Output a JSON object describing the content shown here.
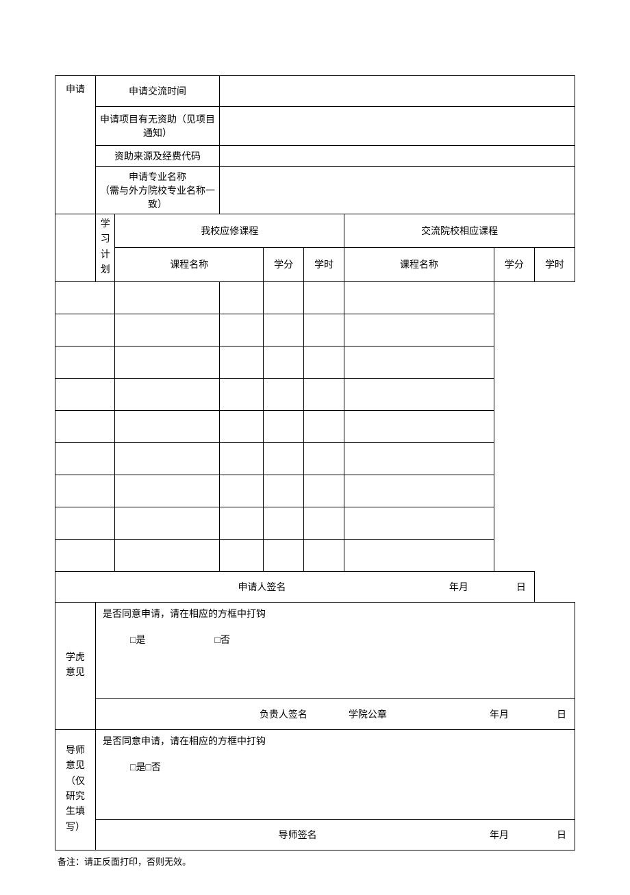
{
  "col1": {
    "apply": "申请",
    "study_plan": "学<br>习<br>计<br>划",
    "college_opinion": "学虎<br>意见",
    "supervisor_opinion": "导师<br>意见<br>（仅<br>研究<br>生填<br>写）"
  },
  "rows": {
    "exchange_time": "申请交流时间",
    "funding": "申请项目有无资助（见项目通知）",
    "funding_source": "资助来源及经费代码",
    "major": "申请专业名称<br>（需与外方院校专业名称一致）"
  },
  "plan_header": {
    "our_courses": "我校应修课程",
    "their_courses": "交流院校相应课程",
    "course_name": "课程名称",
    "credits": "学分",
    "hours": "学时"
  },
  "signatures": {
    "applicant": "申请人签名",
    "manager": "负贵人签名",
    "stamp": "学院公章",
    "supervisor": "导师签名",
    "year_month": "年月",
    "day": "日"
  },
  "approval": {
    "question": "是否同意申请，请在相应的方框中打钩",
    "yes": "□是",
    "no": "□否",
    "yesno": "□是□否"
  },
  "footnote": "备注：请正反面打印，否则无效。",
  "plan_rows": 9
}
